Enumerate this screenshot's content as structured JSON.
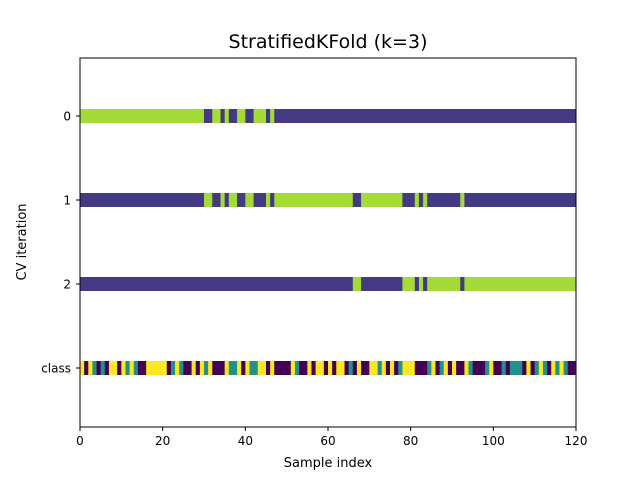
{
  "chart_data": {
    "type": "heatmap",
    "title": "StratifiedKFold (k=3)",
    "xlabel": "Sample index",
    "ylabel": "CV iteration",
    "xlim": [
      0,
      120
    ],
    "x_ticks": [
      0,
      20,
      40,
      60,
      80,
      100,
      120
    ],
    "rows": [
      "0",
      "1",
      "2",
      "class"
    ],
    "colors": {
      "train": "#443983",
      "test": "#a5db36",
      "class_0": "#440154",
      "class_1": "#21918c",
      "class_2": "#fde725"
    },
    "folds": [
      {
        "label": "0",
        "test_intervals": [
          [
            0,
            30
          ],
          [
            32,
            34
          ],
          [
            35,
            36
          ],
          [
            38,
            40
          ],
          [
            42,
            45
          ],
          [
            46,
            47
          ]
        ]
      },
      {
        "label": "1",
        "test_intervals": [
          [
            30,
            32
          ],
          [
            34,
            35
          ],
          [
            36,
            38
          ],
          [
            40,
            42
          ],
          [
            45,
            46
          ],
          [
            47,
            66
          ],
          [
            68,
            78
          ],
          [
            81,
            82
          ],
          [
            83,
            84
          ],
          [
            92,
            93
          ]
        ]
      },
      {
        "label": "2",
        "test_intervals": [
          [
            66,
            68
          ],
          [
            78,
            81
          ],
          [
            82,
            83
          ],
          [
            84,
            92
          ],
          [
            93,
            120
          ]
        ]
      }
    ],
    "class_sequence": [
      2,
      0,
      2,
      1,
      0,
      1,
      0,
      2,
      2,
      0,
      2,
      1,
      2,
      1,
      0,
      0,
      2,
      2,
      2,
      2,
      2,
      0,
      1,
      2,
      1,
      0,
      0,
      2,
      0,
      2,
      1,
      2,
      0,
      0,
      0,
      2,
      1,
      1,
      2,
      0,
      2,
      1,
      1,
      2,
      2,
      0,
      2,
      0,
      0,
      0,
      0,
      2,
      1,
      0,
      0,
      2,
      0,
      2,
      2,
      0,
      2,
      0,
      2,
      2,
      0,
      1,
      0,
      2,
      0,
      0,
      2,
      2,
      1,
      2,
      0,
      2,
      0,
      1,
      2,
      2,
      2,
      0,
      0,
      0,
      1,
      2,
      0,
      1,
      2,
      0,
      2,
      0,
      0,
      2,
      1,
      0,
      0,
      0,
      1,
      2,
      0,
      0,
      1,
      0,
      1,
      1,
      1,
      0,
      2,
      0,
      1,
      2,
      1,
      0,
      2,
      1,
      2,
      1,
      0,
      0
    ]
  }
}
